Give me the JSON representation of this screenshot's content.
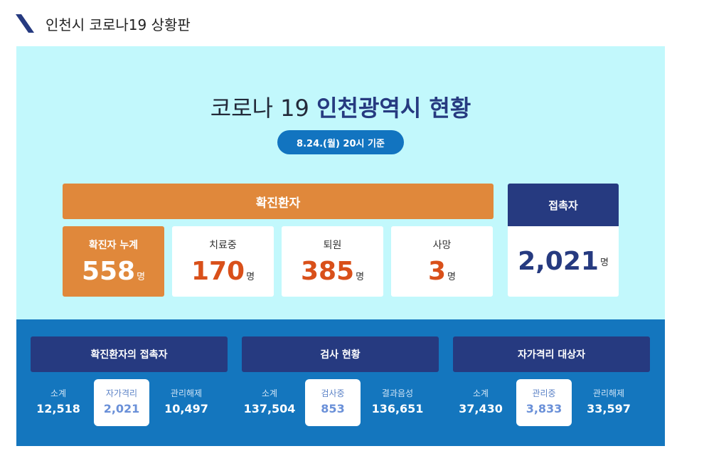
{
  "header": {
    "title": "인천시 코로나19 상황판"
  },
  "heading": {
    "prefix": "코로나 19 ",
    "highlight": "인천광역시 현황"
  },
  "as_of": "8.24.(월) 20시 기준",
  "confirmed": {
    "title": "확진환자",
    "unit": "명",
    "cards": [
      {
        "label": "확진자 누계",
        "value": "558"
      },
      {
        "label": "치료중",
        "value": "170"
      },
      {
        "label": "퇴원",
        "value": "385"
      },
      {
        "label": "사망",
        "value": "3"
      }
    ]
  },
  "contacts": {
    "title": "접촉자",
    "value": "2,021",
    "unit": "명"
  },
  "panels": [
    {
      "title": "확진환자의 접촉자",
      "cells": [
        {
          "label": "소계",
          "value": "12,518"
        },
        {
          "label": "자가격리",
          "value": "2,021"
        },
        {
          "label": "관리해제",
          "value": "10,497"
        }
      ]
    },
    {
      "title": "검사 현황",
      "cells": [
        {
          "label": "소계",
          "value": "137,504"
        },
        {
          "label": "검사중",
          "value": "853"
        },
        {
          "label": "결과음성",
          "value": "136,651"
        }
      ]
    },
    {
      "title": "자가격리 대상자",
      "cells": [
        {
          "label": "소계",
          "value": "37,430"
        },
        {
          "label": "관리중",
          "value": "3,833"
        },
        {
          "label": "관리해제",
          "value": "33,597"
        }
      ]
    }
  ],
  "colors": {
    "accent_orange": "#e0883b",
    "navy": "#263a80",
    "sky_bg": "#c2f8fc",
    "blue_bg": "#1476be",
    "value_red": "#d9501a"
  }
}
